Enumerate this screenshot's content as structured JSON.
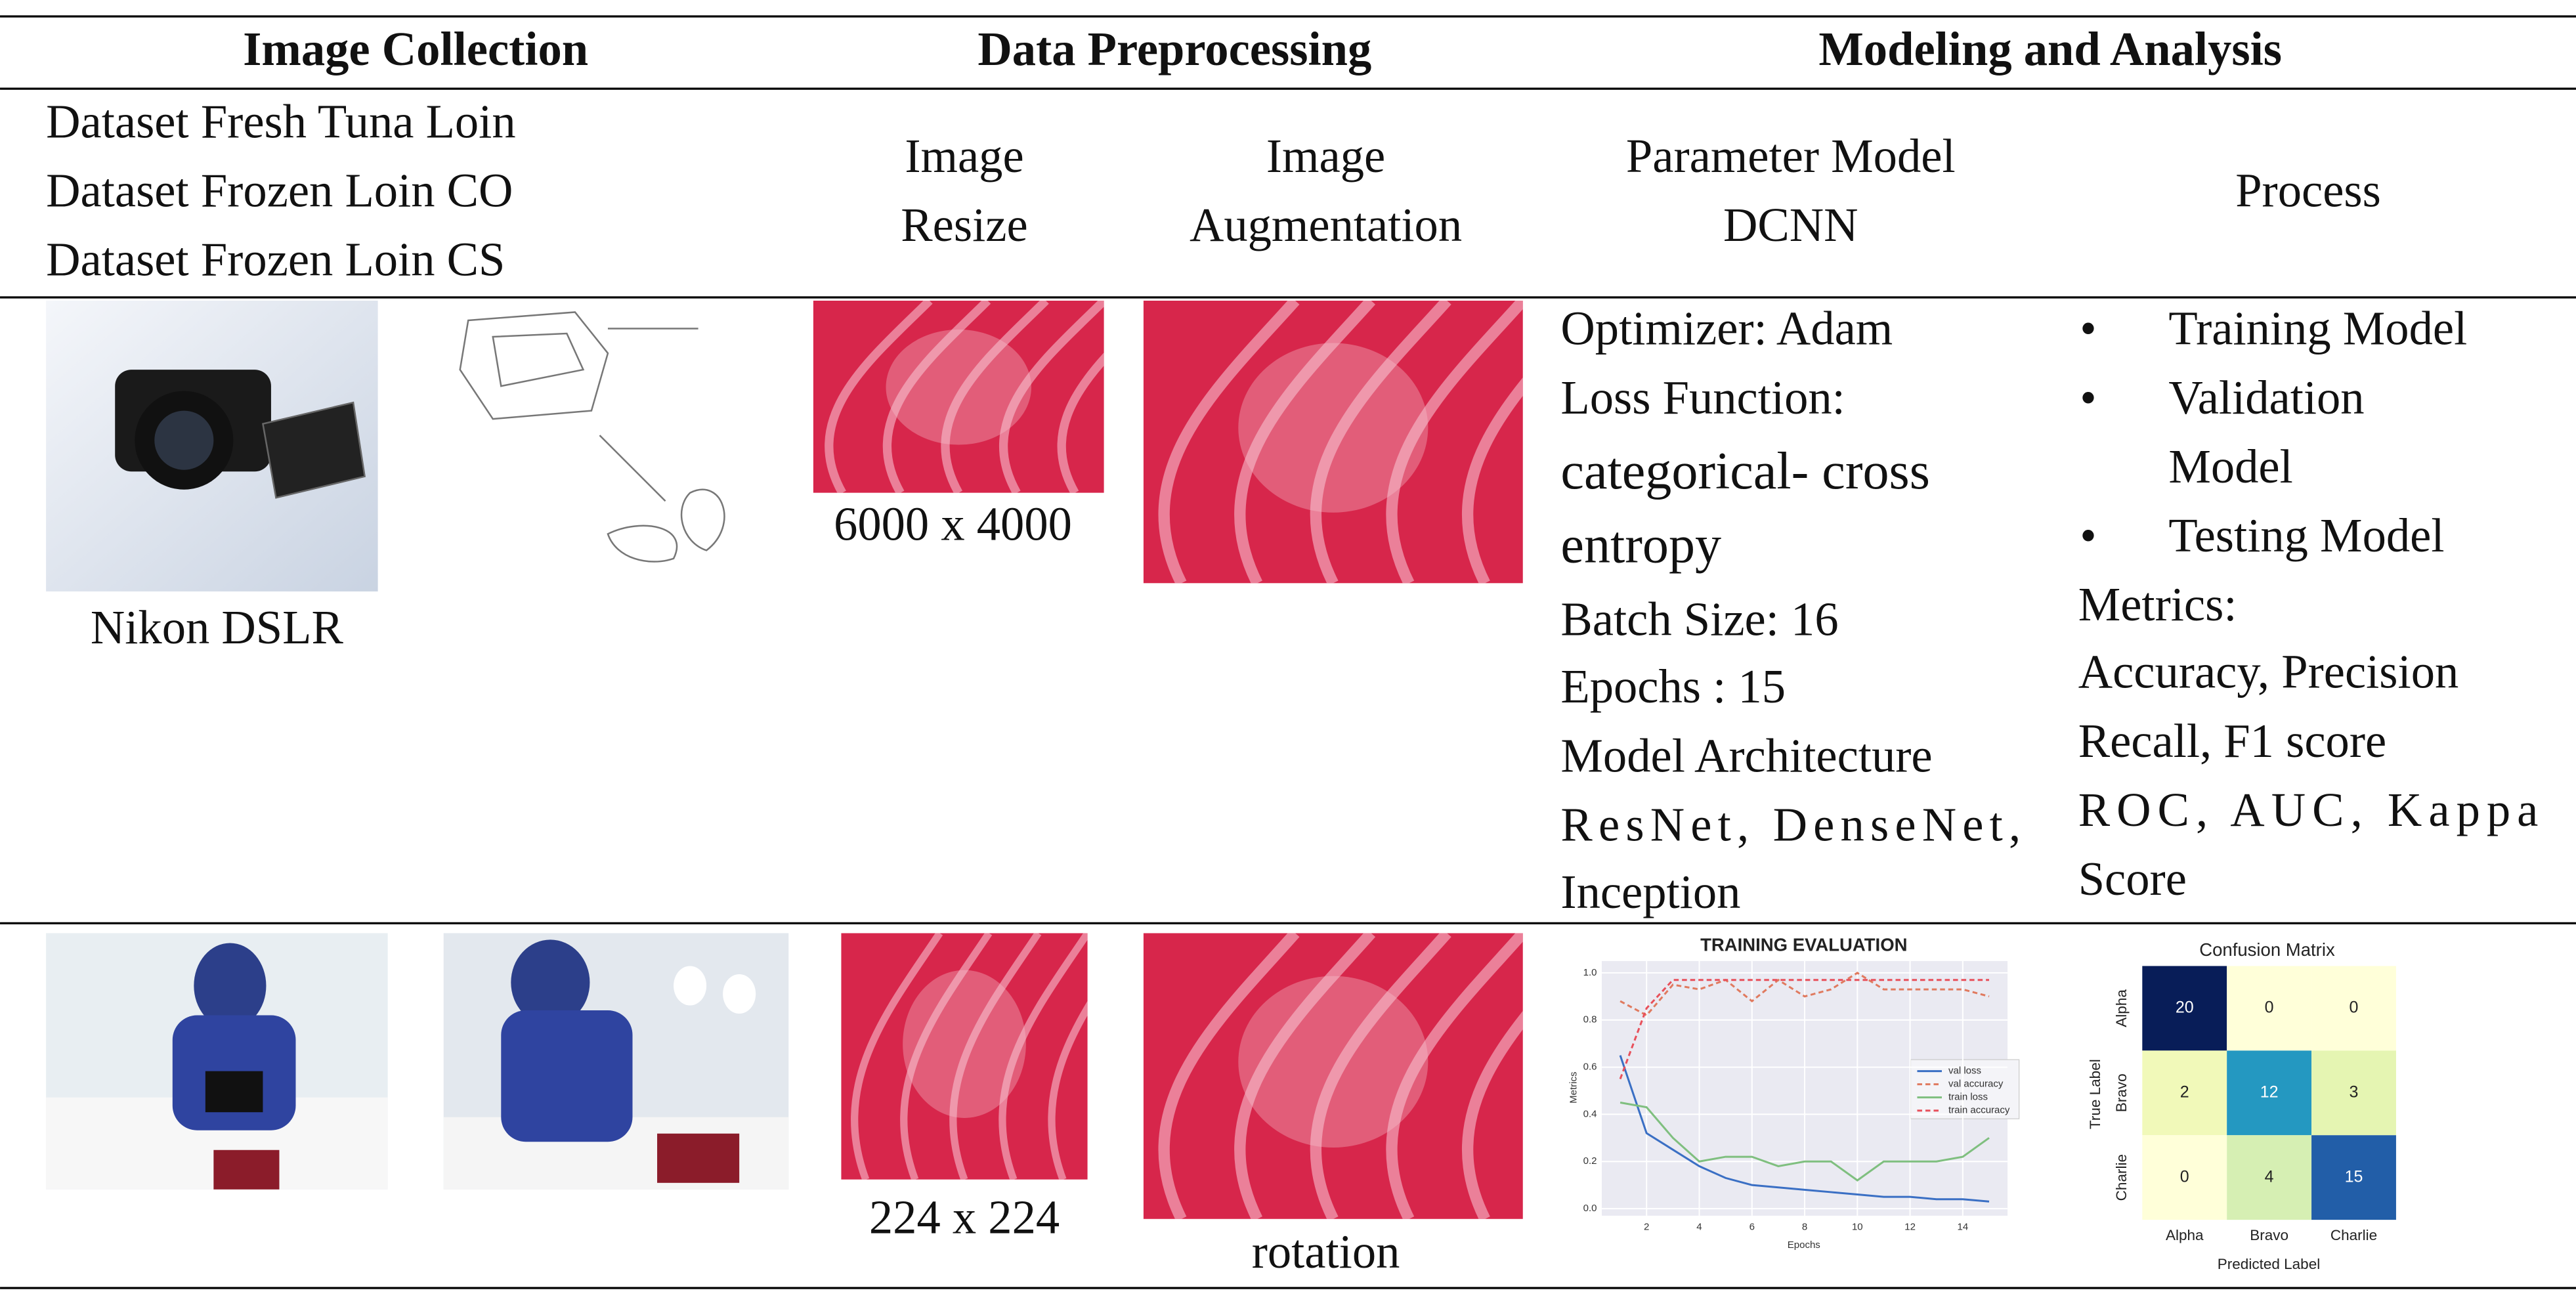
{
  "table": {
    "columns": [
      "Image Collection",
      "Data Preprocessing",
      "Modeling and Analysis"
    ],
    "subheaders": {
      "datasets": [
        "Dataset Fresh Tuna Loin",
        "Dataset Frozen Loin CO",
        "Dataset Frozen Loin CS"
      ],
      "image_resize": [
        "Image",
        "Resize"
      ],
      "image_augmentation": [
        "Image",
        "Augmentation"
      ],
      "parameter_model": [
        "Parameter Model",
        "DCNN"
      ],
      "process": "Process"
    },
    "samples_row": {
      "camera_caption": "Nikon DSLR",
      "resize_caption": "6000 x 4000",
      "parameters": [
        "Optimizer: Adam",
        "Loss Function:",
        "categorical- cross",
        "entropy",
        "Batch Size: 16",
        "Epochs : 15",
        "Model Architecture",
        "ResNet,   DenseNet,",
        "Inception"
      ],
      "process_steps": [
        [
          "Training Model"
        ],
        [
          "Validation",
          "Model"
        ],
        [
          "Testing Model"
        ]
      ],
      "metrics": [
        "Metrics:",
        "Accuracy, Precision",
        "Recall, F1 score",
        "ROC,  AUC,  Kappa",
        "Score"
      ]
    },
    "results_row": {
      "resize_caption": "224 x 224",
      "augmentation_caption": "rotation"
    }
  },
  "training_chart": {
    "type": "line",
    "title": "TRAINING EVALUATION",
    "x_label": "Epochs",
    "y_label": "Metrics",
    "x": [
      1,
      2,
      3,
      4,
      5,
      6,
      7,
      8,
      9,
      10,
      11,
      12,
      13,
      14,
      15
    ],
    "xlim": [
      0.3,
      15.7
    ],
    "xticks": [
      2,
      4,
      6,
      8,
      10,
      12,
      14
    ],
    "ylim": [
      -0.03,
      1.05
    ],
    "yticks": [
      {
        "value": 0,
        "label": "0.0"
      },
      0.2,
      0.4,
      0.6,
      0.8,
      {
        "value": 1,
        "label": "1.0"
      }
    ],
    "grid": true,
    "series": [
      {
        "name": "val loss",
        "color": "#3a6fc4",
        "dash": false,
        "values": [
          0.65,
          0.32,
          0.25,
          0.18,
          0.13,
          0.1,
          0.09,
          0.08,
          0.07,
          0.06,
          0.05,
          0.05,
          0.04,
          0.04,
          0.03
        ]
      },
      {
        "name": "val accuracy",
        "color": "#e07a5f",
        "dash": true,
        "values": [
          0.88,
          0.82,
          0.95,
          0.93,
          0.97,
          0.88,
          0.97,
          0.9,
          0.93,
          1.0,
          0.93,
          0.93,
          0.93,
          0.93,
          0.9
        ]
      },
      {
        "name": "train loss",
        "color": "#7fbf7f",
        "dash": false,
        "values": [
          0.45,
          0.43,
          0.3,
          0.2,
          0.22,
          0.22,
          0.18,
          0.2,
          0.2,
          0.12,
          0.2,
          0.2,
          0.2,
          0.22,
          0.3
        ]
      },
      {
        "name": "train accuracy",
        "color": "#e8505b",
        "dash": true,
        "values": [
          0.55,
          0.85,
          0.97,
          0.97,
          0.97,
          0.97,
          0.97,
          0.97,
          0.97,
          0.97,
          0.97,
          0.97,
          0.97,
          0.97,
          0.97
        ]
      }
    ]
  },
  "confusion_matrix": {
    "type": "heatmap",
    "title": "Confusion Matrix",
    "x_label": "Predicted Label",
    "y_label": "True Label",
    "categories": [
      "Alpha",
      "Bravo",
      "Charlie"
    ],
    "values": [
      [
        20,
        0,
        0
      ],
      [
        2,
        12,
        3
      ],
      [
        0,
        4,
        15
      ]
    ]
  }
}
